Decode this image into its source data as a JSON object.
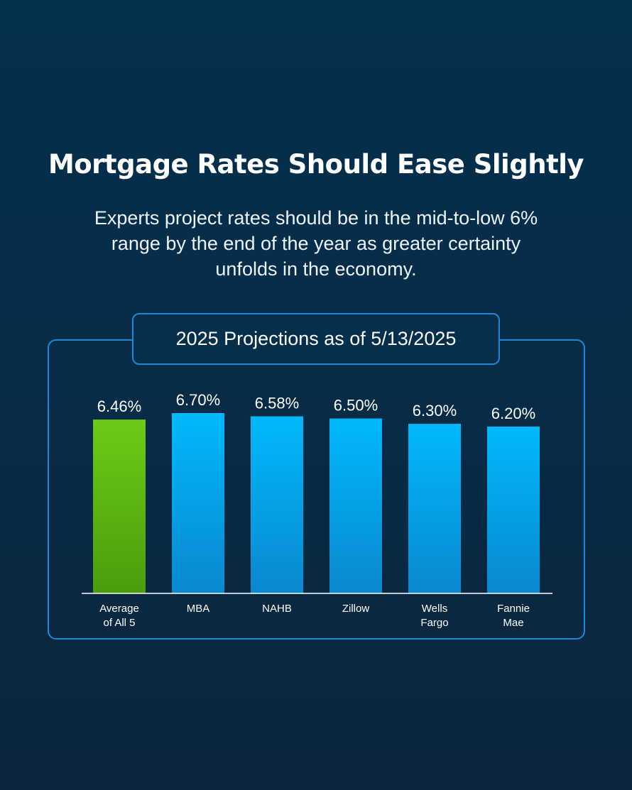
{
  "header": {
    "title": "Mortgage Rates Should Ease Slightly",
    "subtitle": "Experts project rates should be in the mid-to-low 6% range by the end of the year as greater certainty unfolds in the economy."
  },
  "panel": {
    "heading": "2025 Projections as of 5/13/2025"
  },
  "colors": {
    "highlight_bar": "#5cb812",
    "bar": "#0aa6ee",
    "frame": "#1e88d6",
    "background": "#05304c"
  },
  "chart_data": {
    "type": "bar",
    "categories": [
      [
        "Average",
        "of All 5"
      ],
      [
        "MBA"
      ],
      [
        "NAHB"
      ],
      [
        "Zillow"
      ],
      [
        "Wells",
        "Fargo"
      ],
      [
        "Fannie",
        "Mae"
      ]
    ],
    "values": [
      6.46,
      6.7,
      6.58,
      6.5,
      6.3,
      6.2
    ],
    "value_labels": [
      "6.46%",
      "6.70%",
      "6.58%",
      "6.50%",
      "6.30%",
      "6.20%"
    ],
    "highlight_index": 0,
    "ylim": [
      0,
      6.7
    ],
    "grid": false,
    "legend": "none"
  }
}
